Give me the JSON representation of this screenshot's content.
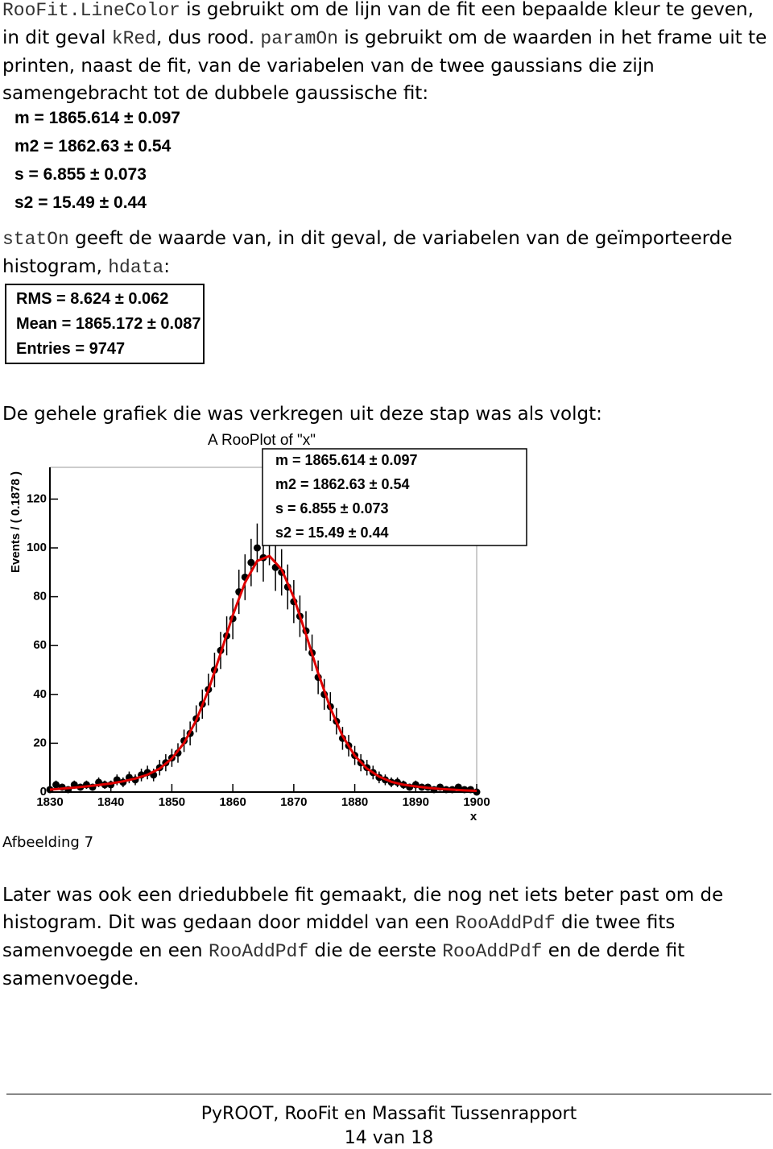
{
  "paragraphs": [
    {
      "segments": [
        {
          "text": "RooFit.LineColor",
          "code": true
        },
        {
          "text": " is gebruikt om de lijn van de fit een bepaalde kleur te geven, in dit geval ",
          "code": false
        },
        {
          "text": "kRed",
          "code": true
        },
        {
          "text": ", dus rood. ",
          "code": false
        },
        {
          "text": "paramOn",
          "code": true
        },
        {
          "text": " is gebruikt om de waarden in het frame uit te printen, naast de fit, van de variabelen van de twee gaussians die zijn samengebracht tot de dubbele gaussische fit:",
          "code": false
        }
      ]
    },
    {
      "segments": [
        {
          "text": "statOn",
          "code": true
        },
        {
          "text": " geeft de waarde van, in dit geval, de variabelen van de geïmporteerde histogram, ",
          "code": false
        },
        {
          "text": "hdata",
          "code": true
        },
        {
          "text": ":",
          "code": false
        }
      ]
    },
    {
      "segments": [
        {
          "text": "De gehele grafiek die was verkregen uit deze stap was als volgt:",
          "code": false
        }
      ]
    },
    {
      "segments": [
        {
          "text": "Later was ook een driedubbele fit gemaakt, die nog net iets beter past om de histogram. Dit was gedaan door middel van een ",
          "code": false
        },
        {
          "text": "RooAddPdf",
          "code": true
        },
        {
          "text": " die twee fits samenvoegde en een ",
          "code": false
        },
        {
          "text": "RooAddPdf",
          "code": true
        },
        {
          "text": " die de eerste ",
          "code": false
        },
        {
          "text": "RooAddPdf",
          "code": true
        },
        {
          "text": " en de derde fit samenvoegde.",
          "code": false
        }
      ]
    }
  ],
  "fit_parameters": [
    "m =  1865.614 ± 0.097",
    "m2 =  1862.63 ± 0.54",
    "s =  6.855 ± 0.073",
    "s2 =  15.49 ± 0.44"
  ],
  "histogram_stats": [
    "RMS =  8.624 ± 0.062",
    "Mean =  1865.172 ± 0.087",
    "Entries =  9747"
  ],
  "chart_data": {
    "type": "errorbar",
    "title": "A RooPlot of \"x\"",
    "x_label": "x",
    "y_label": "Events / ( 0.1878 )",
    "xlim": [
      1830,
      1900
    ],
    "ylim": [
      0,
      133
    ],
    "xticks": [
      1830,
      1840,
      1850,
      1860,
      1870,
      1880,
      1890,
      1900
    ],
    "yticks": [
      0,
      20,
      40,
      60,
      80,
      100,
      120
    ],
    "stat_box": [
      "m =  1865.614 ± 0.097",
      "m2 =  1862.63 ± 0.54",
      "s =  6.855 ± 0.073",
      "s2 =  15.49 ± 0.44"
    ],
    "points": {
      "color": "#000000",
      "x": [
        1830,
        1831,
        1832,
        1833,
        1834,
        1835,
        1836,
        1837,
        1838,
        1839,
        1840,
        1841,
        1842,
        1843,
        1844,
        1845,
        1846,
        1847,
        1848,
        1849,
        1850,
        1851,
        1852,
        1853,
        1854,
        1855,
        1856,
        1857,
        1858,
        1859,
        1860,
        1861,
        1862,
        1863,
        1864,
        1865,
        1866,
        1867,
        1868,
        1869,
        1870,
        1871,
        1872,
        1873,
        1874,
        1875,
        1876,
        1877,
        1878,
        1879,
        1880,
        1881,
        1882,
        1883,
        1884,
        1885,
        1886,
        1887,
        1888,
        1889,
        1890,
        1891,
        1892,
        1893,
        1894,
        1895,
        1896,
        1897,
        1898,
        1899,
        1900
      ],
      "values": [
        1,
        3,
        2,
        1,
        3,
        2,
        3,
        2,
        4,
        3,
        3,
        5,
        4,
        6,
        5,
        7,
        8,
        7,
        10,
        12,
        14,
        16,
        21,
        24,
        30,
        36,
        42,
        50,
        58,
        64,
        71,
        82,
        88,
        94,
        100,
        96,
        103,
        92,
        90,
        84,
        78,
        72,
        66,
        57,
        47,
        40,
        35,
        29,
        22,
        19,
        15,
        12,
        10,
        8,
        6,
        5,
        4,
        4,
        3,
        2,
        3,
        2,
        2,
        1,
        2,
        1,
        1,
        2,
        1,
        1,
        0
      ],
      "errors": [
        1,
        1.7,
        1.4,
        1,
        1.7,
        1.4,
        1.7,
        1.4,
        2,
        1.7,
        1.7,
        2.2,
        2,
        2.4,
        2.2,
        2.6,
        2.8,
        2.6,
        3.2,
        3.5,
        3.7,
        4,
        4.6,
        4.9,
        5.5,
        6,
        6.5,
        7.1,
        7.6,
        8,
        8.4,
        9.1,
        9.4,
        9.7,
        10,
        9.8,
        10.1,
        9.6,
        9.5,
        9.2,
        8.8,
        8.5,
        8.1,
        7.5,
        6.9,
        6.3,
        5.9,
        5.4,
        4.7,
        4.4,
        3.9,
        3.5,
        3.2,
        2.8,
        2.4,
        2.2,
        2,
        2,
        1.7,
        1.4,
        1.7,
        1.4,
        1.4,
        1,
        1.4,
        1,
        1,
        1.4,
        1,
        1,
        1
      ]
    },
    "fit_curve": {
      "color": "#e00000",
      "x": [
        1830,
        1832,
        1834,
        1836,
        1838,
        1840,
        1842,
        1844,
        1846,
        1848,
        1850,
        1852,
        1854,
        1856,
        1858,
        1860,
        1862,
        1864,
        1866,
        1868,
        1870,
        1872,
        1874,
        1876,
        1878,
        1880,
        1882,
        1884,
        1886,
        1888,
        1890,
        1892,
        1894,
        1896,
        1898,
        1900
      ],
      "values": [
        1,
        1.4,
        1.8,
        2.3,
        2.9,
        3.5,
        4.4,
        5.5,
        7.1,
        9.6,
        13.7,
        20.1,
        29.4,
        41.8,
        56.8,
        72.4,
        85.8,
        94.7,
        96.7,
        91.2,
        79.7,
        64.6,
        48.7,
        34.4,
        23,
        14.9,
        9.6,
        6.3,
        4.2,
        3,
        2.3,
        1.7,
        1.3,
        1,
        0.7,
        0.5
      ]
    }
  },
  "caption": "Afbeelding 7",
  "footer": {
    "title": "PyROOT, RooFit en Massafit Tussenrapport",
    "page": "14 van 18"
  }
}
